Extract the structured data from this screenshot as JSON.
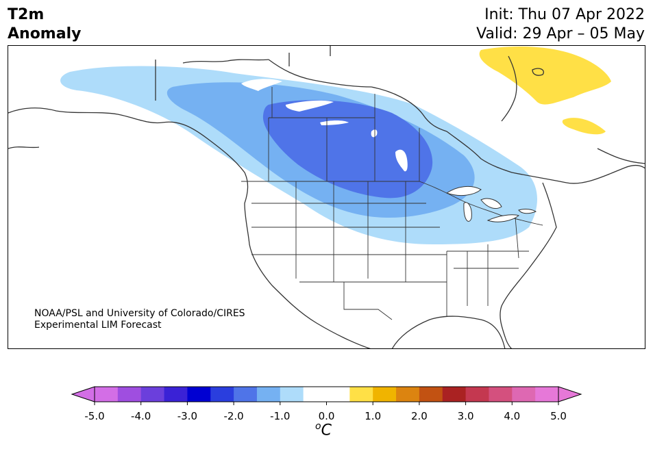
{
  "title": {
    "line1": "T2m",
    "line2": "Anomaly"
  },
  "info": {
    "init": "Init: Thu 07 Apr 2022",
    "valid": "Valid: 29 Apr – 05 May"
  },
  "credit": {
    "line1": "NOAA/PSL and University of Colorado/CIRES",
    "line2": "Experimental LIM Forecast"
  },
  "colorbar": {
    "ticks": [
      "-5.0",
      "-4.0",
      "-3.0",
      "-2.0",
      "-1.0",
      "0.0",
      "1.0",
      "2.0",
      "3.0",
      "4.0",
      "5.0"
    ],
    "unit_sup": "o",
    "unit_main": "C",
    "colors": [
      "#d36ee6",
      "#9f4ee0",
      "#6b3fdc",
      "#3a22d6",
      "#0000d2",
      "#2a3ede",
      "#4f74e8",
      "#75b1f2",
      "#aedcfa",
      "#ffffff",
      "#ffffff",
      "#ffe046",
      "#f0b400",
      "#dc8410",
      "#c25212",
      "#aa2222",
      "#c43850",
      "#d4507e",
      "#de68b2",
      "#e678d8"
    ],
    "under_color": "#d36ee6",
    "over_color": "#e678d8"
  },
  "map": {
    "colors": {
      "light_blue": "#aedcfa",
      "mid_blue": "#75b1f2",
      "dark_blue": "#4f74e8",
      "yellow": "#ffe046",
      "border": "#333333"
    }
  }
}
